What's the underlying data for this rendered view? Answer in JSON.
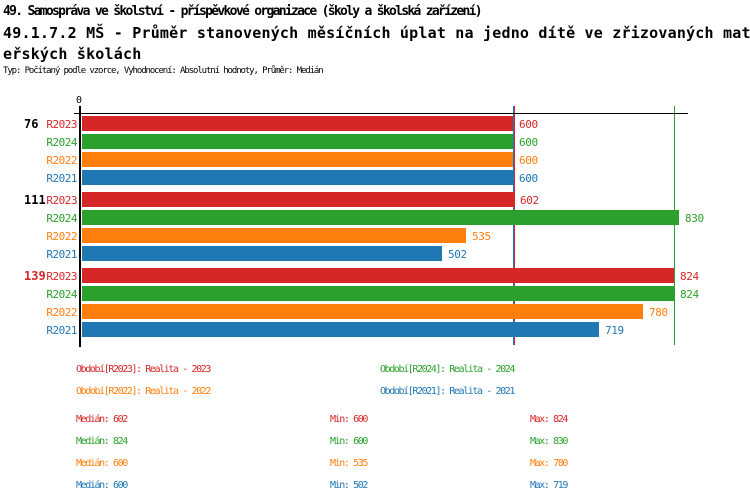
{
  "header": {
    "line1": "49. Samospráva ve školství - příspěvkové organizace (školy a školská zařízení)",
    "line2": "49.1.7.2 MŠ - Průměr stanovených měsíčních úplat na jedno dítě ve zřizovaných mat",
    "line3": "eřských školách",
    "meta": "Typ: Počítaný podle vzorce, Vyhodnocení: Absolutní hodnoty, Průměr: Medián"
  },
  "chart_data": {
    "type": "bar",
    "orientation": "horizontal",
    "origin_label": "0",
    "x_axis": {
      "min": 0,
      "shown_tick_labels": [
        "0"
      ],
      "grid": false
    },
    "series": [
      {
        "id": "R2023",
        "label": "R2023",
        "color": "#d62728",
        "legend": "Období[R2023]: Realita - 2023",
        "median": 602,
        "min": 600,
        "max": 824
      },
      {
        "id": "R2024",
        "label": "R2024",
        "color": "#2ca02c",
        "legend": "Období[R2024]: Realita - 2024",
        "median": 824,
        "min": 600,
        "max": 830
      },
      {
        "id": "R2022",
        "label": "R2022",
        "color": "#ff7f0e",
        "legend": "Období[R2022]: Realita - 2022",
        "median": 600,
        "min": 535,
        "max": 780
      },
      {
        "id": "R2021",
        "label": "R2021",
        "color": "#1f77b4",
        "legend": "Období[R2021]: Realita - 2021",
        "median": 600,
        "min": 502,
        "max": 719
      }
    ],
    "groups": [
      {
        "label": "76",
        "label_color": "#000000",
        "values": {
          "R2023": 600,
          "R2024": 600,
          "R2022": 600,
          "R2021": 600
        }
      },
      {
        "label": "111",
        "label_color": "#000000",
        "values": {
          "R2023": 602,
          "R2024": 830,
          "R2022": 535,
          "R2021": 502
        }
      },
      {
        "label": "139",
        "label_color": "#d62728",
        "values": {
          "R2023": 824,
          "R2024": 824,
          "R2022": 780,
          "R2021": 719
        }
      }
    ],
    "median_reference_lines": [
      {
        "series": "R2023",
        "value": 602
      },
      {
        "series": "R2024",
        "value": 824
      },
      {
        "series": "R2022",
        "value": 600
      },
      {
        "series": "R2021",
        "value": 600
      }
    ]
  },
  "stats_labels": {
    "median": "Medián",
    "min": "Min",
    "max": "Max"
  },
  "colors": {
    "axis": "#000000",
    "r2023": "#d62728",
    "r2024": "#2ca02c",
    "r2022": "#ff7f0e",
    "r2021": "#1f77b4"
  }
}
